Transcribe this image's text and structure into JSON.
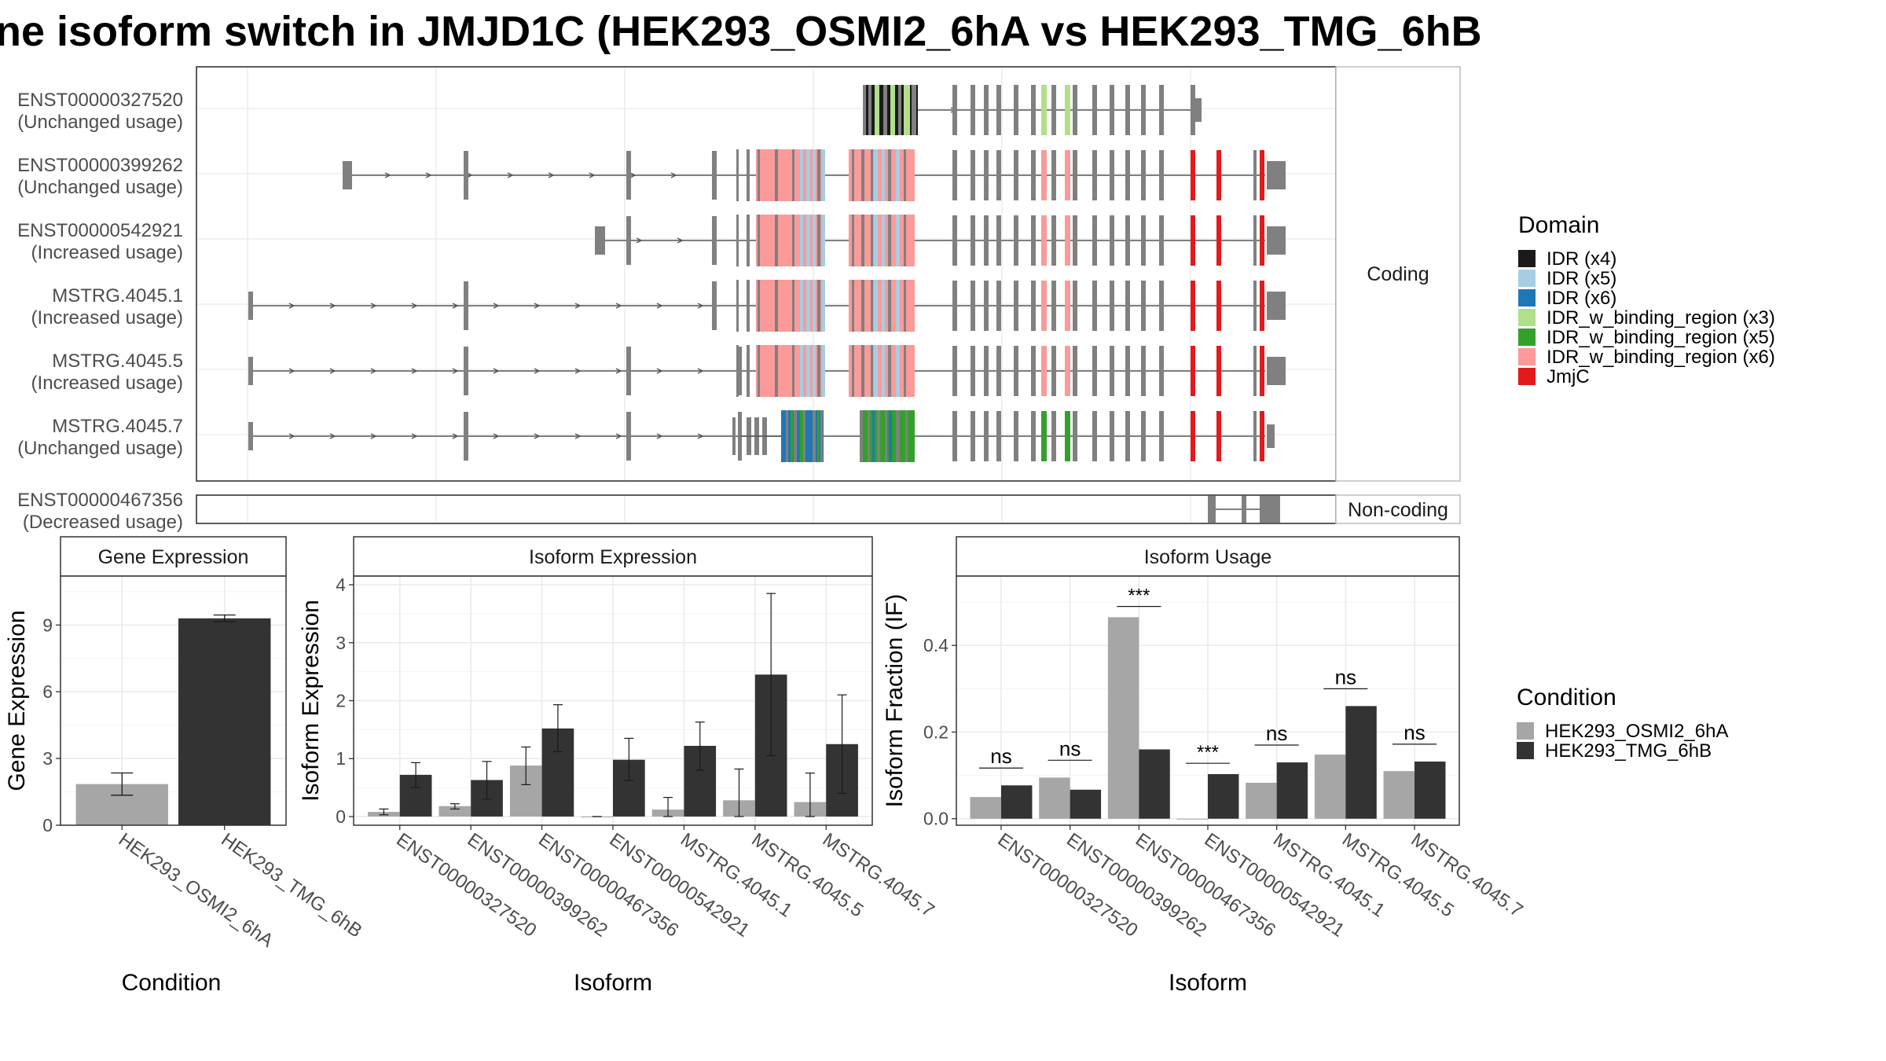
{
  "title": "ne isoform switch in JMJD1C (HEK293_OSMI2_6hA vs HEK293_TMG_6hB",
  "structure": {
    "coding_strip": "Coding",
    "noncoding_strip": "Non-coding",
    "transcripts": [
      {
        "id": "ENST00000327520",
        "usage": "(Unchanged usage)"
      },
      {
        "id": "ENST00000399262",
        "usage": "(Unchanged usage)"
      },
      {
        "id": "ENST00000542921",
        "usage": "(Increased usage)"
      },
      {
        "id": "MSTRG.4045.1",
        "usage": "(Increased usage)"
      },
      {
        "id": "MSTRG.4045.5",
        "usage": "(Increased usage)"
      },
      {
        "id": "MSTRG.4045.7",
        "usage": "(Unchanged usage)"
      }
    ],
    "noncoding_transcript": {
      "id": "ENST00000467356",
      "usage": "(Decreased usage)"
    }
  },
  "domain_legend": {
    "title": "Domain",
    "items": [
      {
        "label": "IDR (x4)",
        "color": "#1a1a1a"
      },
      {
        "label": "IDR (x5)",
        "color": "#a6cee3"
      },
      {
        "label": "IDR (x6)",
        "color": "#1f78b4"
      },
      {
        "label": "IDR_w_binding_region (x3)",
        "color": "#b2df8a"
      },
      {
        "label": "IDR_w_binding_region (x5)",
        "color": "#33a02c"
      },
      {
        "label": "IDR_w_binding_region (x6)",
        "color": "#fb9a99"
      },
      {
        "label": "JmjC",
        "color": "#e31a1c"
      }
    ]
  },
  "condition_legend": {
    "title": "Condition",
    "items": [
      {
        "label": "HEK293_OSMI2_6hA",
        "color": "#a6a6a6"
      },
      {
        "label": "HEK293_TMG_6hB",
        "color": "#333333"
      }
    ]
  },
  "chart_data": [
    {
      "type": "bar",
      "title": "Gene Expression",
      "xlabel": "Condition",
      "ylabel": "Gene Expression",
      "ylim": [
        0,
        11.2
      ],
      "yticks": [
        0,
        3,
        6,
        9
      ],
      "categories": [
        "HEK293_OSMI2_6hA",
        "HEK293_TMG_6hB"
      ],
      "values": [
        1.85,
        9.3
      ],
      "error": [
        [
          1.35,
          2.35
        ],
        [
          9.15,
          9.45
        ]
      ]
    },
    {
      "type": "bar",
      "title": "Isoform Expression",
      "xlabel": "Isoform",
      "ylabel": "Isoform Expression",
      "ylim": [
        -0.15,
        4.15
      ],
      "yticks": [
        0,
        1,
        2,
        3,
        4
      ],
      "categories": [
        "ENST00000327520",
        "ENST00000399262",
        "ENST00000467356",
        "ENST00000542921",
        "MSTRG.4045.1",
        "MSTRG.4045.5",
        "MSTRG.4045.7"
      ],
      "series": [
        {
          "name": "HEK293_OSMI2_6hA",
          "values": [
            0.08,
            0.18,
            0.88,
            0.0,
            0.12,
            0.28,
            0.25
          ],
          "error": [
            [
              0.03,
              0.13
            ],
            [
              0.13,
              0.22
            ],
            [
              0.55,
              1.2
            ],
            [
              0.0,
              0.0
            ],
            [
              0.0,
              0.33
            ],
            [
              0.0,
              0.82
            ],
            [
              0.0,
              0.75
            ]
          ]
        },
        {
          "name": "HEK293_TMG_6hB",
          "values": [
            0.72,
            0.63,
            1.52,
            0.98,
            1.22,
            2.45,
            1.25
          ],
          "error": [
            [
              0.5,
              0.93
            ],
            [
              0.3,
              0.95
            ],
            [
              1.12,
              1.93
            ],
            [
              0.62,
              1.35
            ],
            [
              0.8,
              1.63
            ],
            [
              1.05,
              3.85
            ],
            [
              0.4,
              2.1
            ]
          ]
        }
      ]
    },
    {
      "type": "bar",
      "title": "Isoform Usage",
      "xlabel": "Isoform",
      "ylabel": "Isoform Fraction (IF)",
      "ylim": [
        -0.015,
        0.56
      ],
      "yticks": [
        0.0,
        0.2,
        0.4
      ],
      "ytick_labels": [
        "0.0",
        "0.2",
        "0.4"
      ],
      "categories": [
        "ENST00000327520",
        "ENST00000399262",
        "ENST00000467356",
        "ENST00000542921",
        "MSTRG.4045.1",
        "MSTRG.4045.5",
        "MSTRG.4045.7"
      ],
      "series": [
        {
          "name": "HEK293_OSMI2_6hA",
          "values": [
            0.05,
            0.095,
            0.465,
            0.0,
            0.083,
            0.148,
            0.11
          ]
        },
        {
          "name": "HEK293_TMG_6hB",
          "values": [
            0.077,
            0.067,
            0.16,
            0.103,
            0.13,
            0.26,
            0.132
          ]
        }
      ],
      "significance": [
        "ns",
        "ns",
        "***",
        "***",
        "ns",
        "ns",
        "ns"
      ]
    }
  ]
}
